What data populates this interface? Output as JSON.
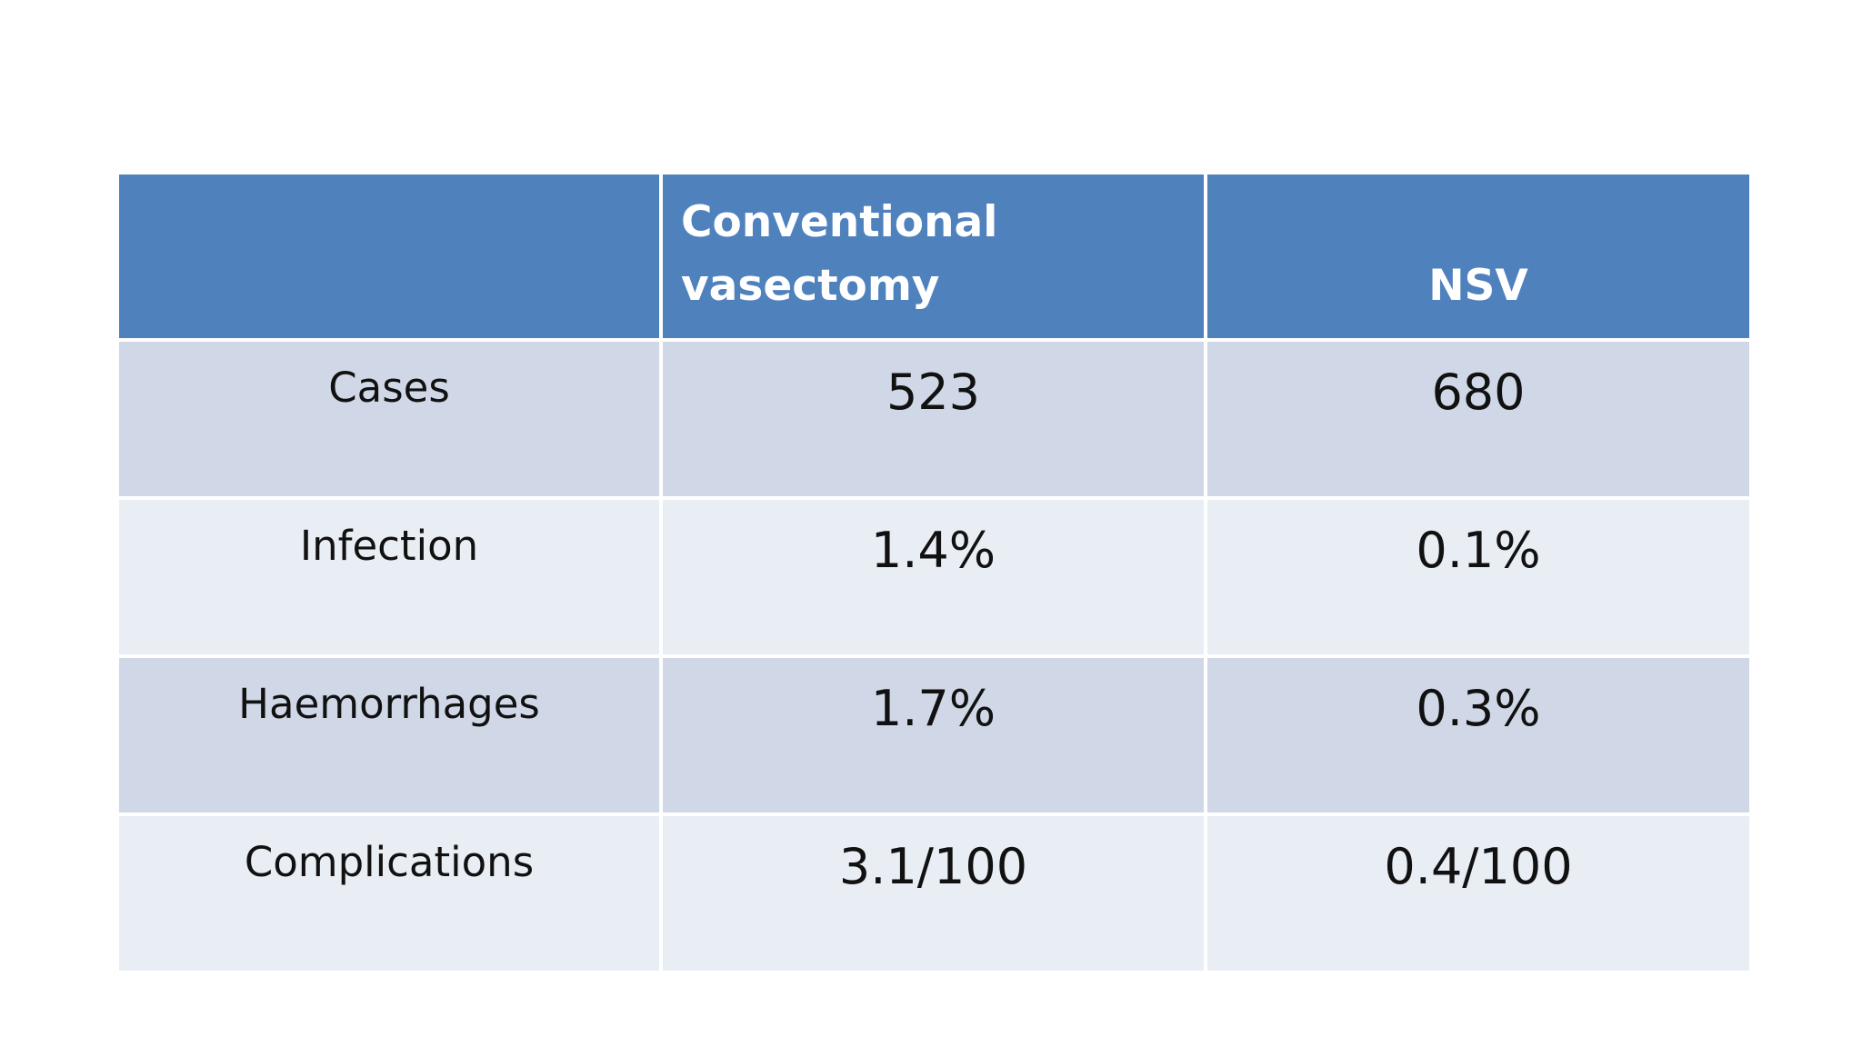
{
  "table": {
    "header": [
      "Conventional vasectomy",
      "NSV"
    ],
    "rows": [
      [
        "Cases",
        "523",
        "680"
      ],
      [
        "Infection",
        "1.4%",
        "0.1%"
      ],
      [
        "Haemorrhages",
        "1.7%",
        "0.3%"
      ],
      [
        "Complications",
        "3.1/100",
        "0.4/100"
      ]
    ]
  }
}
